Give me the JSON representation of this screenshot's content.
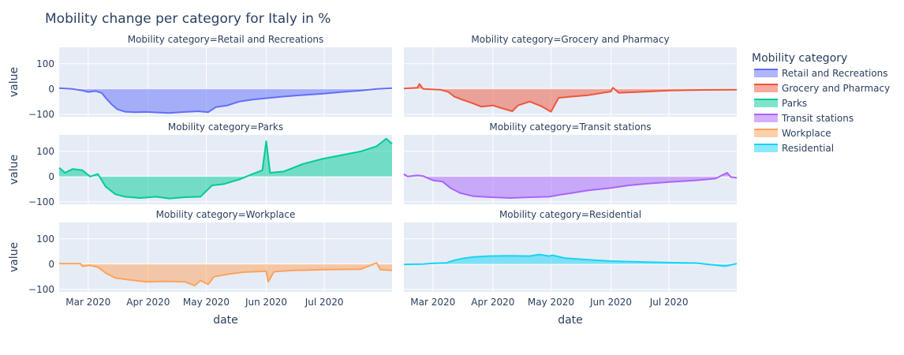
{
  "chart_data": {
    "type": "area",
    "title": "Mobility change per category for Italy in %",
    "facet_prefix": "Mobility category=",
    "xlabel": "date",
    "ylabel": "value",
    "x_range": [
      "2020-02-15",
      "2020-08-05"
    ],
    "y_range": [
      -110,
      165
    ],
    "y_ticks": [
      "100",
      "0",
      "−100"
    ],
    "x_ticks": [
      "Mar 2020",
      "Apr 2020",
      "May 2020",
      "Jun 2020",
      "Jul 2020"
    ],
    "x_tick_dates": [
      "2020-03-01",
      "2020-04-01",
      "2020-05-01",
      "2020-06-01",
      "2020-07-01"
    ],
    "legend_title": "Mobility category",
    "series": [
      {
        "name": "Retail and Recreations",
        "color": "#636efa",
        "points": [
          [
            "2020-02-15",
            3
          ],
          [
            "2020-02-22",
            0
          ],
          [
            "2020-02-27",
            -6
          ],
          [
            "2020-03-01",
            -12
          ],
          [
            "2020-03-05",
            -8
          ],
          [
            "2020-03-08",
            -16
          ],
          [
            "2020-03-10",
            -35
          ],
          [
            "2020-03-13",
            -60
          ],
          [
            "2020-03-16",
            -80
          ],
          [
            "2020-03-20",
            -90
          ],
          [
            "2020-03-25",
            -92
          ],
          [
            "2020-03-31",
            -91
          ],
          [
            "2020-04-06",
            -93
          ],
          [
            "2020-04-12",
            -95
          ],
          [
            "2020-04-20",
            -91
          ],
          [
            "2020-04-27",
            -88
          ],
          [
            "2020-05-02",
            -92
          ],
          [
            "2020-05-06",
            -72
          ],
          [
            "2020-05-12",
            -65
          ],
          [
            "2020-05-18",
            -50
          ],
          [
            "2020-05-25",
            -42
          ],
          [
            "2020-06-02",
            -36
          ],
          [
            "2020-06-10",
            -30
          ],
          [
            "2020-06-20",
            -24
          ],
          [
            "2020-07-01",
            -18
          ],
          [
            "2020-07-10",
            -12
          ],
          [
            "2020-07-20",
            -6
          ],
          [
            "2020-07-28",
            0
          ],
          [
            "2020-08-05",
            3
          ]
        ]
      },
      {
        "name": "Grocery and Pharmacy",
        "color": "#ef553b",
        "points": [
          [
            "2020-02-15",
            2
          ],
          [
            "2020-02-22",
            5
          ],
          [
            "2020-02-23",
            20
          ],
          [
            "2020-02-25",
            0
          ],
          [
            "2020-03-05",
            -3
          ],
          [
            "2020-03-09",
            -12
          ],
          [
            "2020-03-12",
            -30
          ],
          [
            "2020-03-16",
            -42
          ],
          [
            "2020-03-21",
            -55
          ],
          [
            "2020-03-26",
            -70
          ],
          [
            "2020-04-01",
            -65
          ],
          [
            "2020-04-05",
            -75
          ],
          [
            "2020-04-11",
            -88
          ],
          [
            "2020-04-14",
            -65
          ],
          [
            "2020-04-20",
            -50
          ],
          [
            "2020-04-26",
            -68
          ],
          [
            "2020-05-01",
            -90
          ],
          [
            "2020-05-05",
            -35
          ],
          [
            "2020-05-12",
            -30
          ],
          [
            "2020-05-20",
            -25
          ],
          [
            "2020-06-01",
            -10
          ],
          [
            "2020-06-02",
            5
          ],
          [
            "2020-06-05",
            -15
          ],
          [
            "2020-06-15",
            -12
          ],
          [
            "2020-07-01",
            -6
          ],
          [
            "2020-07-15",
            -4
          ],
          [
            "2020-08-05",
            -3
          ]
        ]
      },
      {
        "name": "Parks",
        "color": "#00cc96",
        "points": [
          [
            "2020-02-15",
            35
          ],
          [
            "2020-02-18",
            15
          ],
          [
            "2020-02-22",
            30
          ],
          [
            "2020-02-27",
            25
          ],
          [
            "2020-03-02",
            0
          ],
          [
            "2020-03-06",
            10
          ],
          [
            "2020-03-10",
            -40
          ],
          [
            "2020-03-15",
            -70
          ],
          [
            "2020-03-20",
            -80
          ],
          [
            "2020-03-28",
            -85
          ],
          [
            "2020-04-05",
            -80
          ],
          [
            "2020-04-12",
            -87
          ],
          [
            "2020-04-20",
            -82
          ],
          [
            "2020-04-28",
            -80
          ],
          [
            "2020-05-04",
            -35
          ],
          [
            "2020-05-10",
            -30
          ],
          [
            "2020-05-18",
            -12
          ],
          [
            "2020-05-25",
            10
          ],
          [
            "2020-05-30",
            25
          ],
          [
            "2020-06-01",
            140
          ],
          [
            "2020-06-03",
            15
          ],
          [
            "2020-06-10",
            20
          ],
          [
            "2020-06-20",
            50
          ],
          [
            "2020-06-30",
            70
          ],
          [
            "2020-07-10",
            85
          ],
          [
            "2020-07-20",
            100
          ],
          [
            "2020-07-28",
            120
          ],
          [
            "2020-08-02",
            150
          ],
          [
            "2020-08-05",
            130
          ]
        ]
      },
      {
        "name": "Transit stations",
        "color": "#ab63fa",
        "points": [
          [
            "2020-02-15",
            10
          ],
          [
            "2020-02-17",
            0
          ],
          [
            "2020-02-22",
            5
          ],
          [
            "2020-02-25",
            2
          ],
          [
            "2020-03-01",
            -15
          ],
          [
            "2020-03-06",
            -20
          ],
          [
            "2020-03-10",
            -45
          ],
          [
            "2020-03-15",
            -65
          ],
          [
            "2020-03-22",
            -78
          ],
          [
            "2020-03-31",
            -82
          ],
          [
            "2020-04-10",
            -85
          ],
          [
            "2020-04-20",
            -82
          ],
          [
            "2020-04-30",
            -80
          ],
          [
            "2020-05-06",
            -72
          ],
          [
            "2020-05-12",
            -65
          ],
          [
            "2020-05-20",
            -55
          ],
          [
            "2020-06-01",
            -45
          ],
          [
            "2020-06-10",
            -35
          ],
          [
            "2020-06-20",
            -28
          ],
          [
            "2020-07-01",
            -22
          ],
          [
            "2020-07-15",
            -15
          ],
          [
            "2020-07-25",
            -8
          ],
          [
            "2020-07-31",
            15
          ],
          [
            "2020-08-02",
            -2
          ],
          [
            "2020-08-05",
            -5
          ]
        ]
      },
      {
        "name": "Workplace",
        "color": "#ffa15a",
        "points": [
          [
            "2020-02-15",
            2
          ],
          [
            "2020-02-26",
            2
          ],
          [
            "2020-02-27",
            -8
          ],
          [
            "2020-03-02",
            -5
          ],
          [
            "2020-03-06",
            -12
          ],
          [
            "2020-03-10",
            -35
          ],
          [
            "2020-03-15",
            -55
          ],
          [
            "2020-03-22",
            -62
          ],
          [
            "2020-03-31",
            -70
          ],
          [
            "2020-04-10",
            -68
          ],
          [
            "2020-04-20",
            -70
          ],
          [
            "2020-04-25",
            -85
          ],
          [
            "2020-04-28",
            -65
          ],
          [
            "2020-05-02",
            -80
          ],
          [
            "2020-05-05",
            -50
          ],
          [
            "2020-05-12",
            -40
          ],
          [
            "2020-05-20",
            -32
          ],
          [
            "2020-06-01",
            -28
          ],
          [
            "2020-06-02",
            -70
          ],
          [
            "2020-06-05",
            -30
          ],
          [
            "2020-06-15",
            -25
          ],
          [
            "2020-07-01",
            -22
          ],
          [
            "2020-07-20",
            -20
          ],
          [
            "2020-07-28",
            5
          ],
          [
            "2020-07-30",
            -22
          ],
          [
            "2020-08-05",
            -25
          ]
        ]
      },
      {
        "name": "Residential",
        "color": "#19d3f3",
        "points": [
          [
            "2020-02-15",
            -1
          ],
          [
            "2020-02-25",
            0
          ],
          [
            "2020-03-01",
            3
          ],
          [
            "2020-03-08",
            5
          ],
          [
            "2020-03-12",
            15
          ],
          [
            "2020-03-16",
            22
          ],
          [
            "2020-03-22",
            28
          ],
          [
            "2020-03-30",
            32
          ],
          [
            "2020-04-10",
            33
          ],
          [
            "2020-04-20",
            32
          ],
          [
            "2020-04-25",
            38
          ],
          [
            "2020-04-30",
            32
          ],
          [
            "2020-05-02",
            35
          ],
          [
            "2020-05-08",
            24
          ],
          [
            "2020-05-15",
            20
          ],
          [
            "2020-05-25",
            15
          ],
          [
            "2020-06-01",
            12
          ],
          [
            "2020-06-10",
            10
          ],
          [
            "2020-06-20",
            8
          ],
          [
            "2020-07-01",
            6
          ],
          [
            "2020-07-15",
            4
          ],
          [
            "2020-07-30",
            -8
          ],
          [
            "2020-08-05",
            2
          ]
        ]
      }
    ]
  }
}
